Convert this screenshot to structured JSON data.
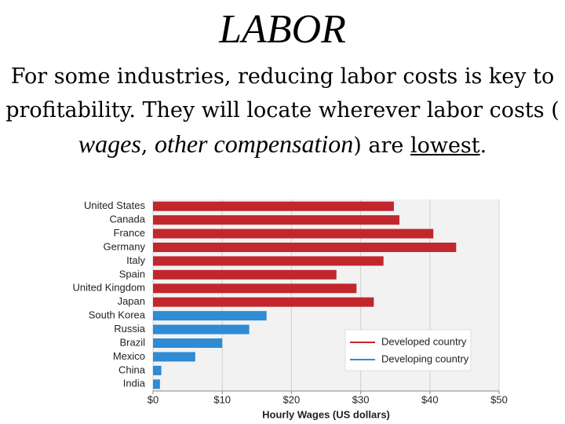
{
  "slide": {
    "title": "LABOR",
    "body": [
      {
        "text": "For some industries, reducing labor costs is key to profitability. They will locate wherever labor costs ( ",
        "style": "normal"
      },
      {
        "text": "wages",
        "style": "italic"
      },
      {
        "text": ", ",
        "style": "normal"
      },
      {
        "text": "other compensation",
        "style": "italic"
      },
      {
        "text": ") are ",
        "style": "normal"
      },
      {
        "text": "lowest",
        "style": "underline"
      },
      {
        "text": ".",
        "style": "normal"
      }
    ]
  },
  "chart_data": {
    "type": "hbar",
    "categories": [
      "United States",
      "Canada",
      "France",
      "Germany",
      "Italy",
      "Spain",
      "United Kingdom",
      "Japan",
      "South Korea",
      "Russia",
      "Brazil",
      "Mexico",
      "China",
      "India"
    ],
    "series": [
      {
        "name": "Developed country",
        "color": "#c1272d",
        "values": [
          34.8,
          35.6,
          40.5,
          43.8,
          33.3,
          26.5,
          29.4,
          31.9,
          null,
          null,
          null,
          null,
          null,
          null
        ]
      },
      {
        "name": "Developing country",
        "color": "#2e8bd4",
        "values": [
          null,
          null,
          null,
          null,
          null,
          null,
          null,
          null,
          16.4,
          13.9,
          10.0,
          6.1,
          1.2,
          1.0
        ]
      }
    ],
    "xlim": [
      0,
      50
    ],
    "xticks": [
      {
        "value": 0,
        "label": "$0"
      },
      {
        "value": 10,
        "label": "$10"
      },
      {
        "value": 20,
        "label": "$20"
      },
      {
        "value": 30,
        "label": "$30"
      },
      {
        "value": 40,
        "label": "$40"
      },
      {
        "value": 50,
        "label": "$50"
      }
    ],
    "xlabel": "Hourly Wages (US dollars)",
    "grid": true,
    "legend": "lower right"
  }
}
